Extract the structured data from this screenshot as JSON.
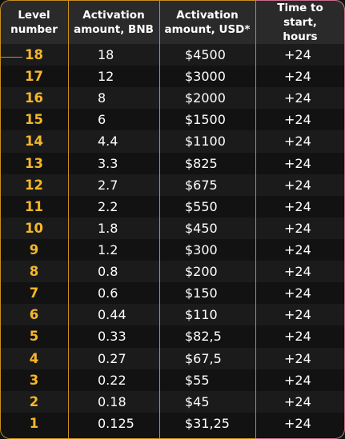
{
  "headers": {
    "level": "Level\nnumber",
    "bnb": "Activation\namount, BNB",
    "usd": "Activation\namount, USD*",
    "time": "Time to start,\nhours"
  },
  "rows": [
    {
      "level": "18",
      "bnb": "18",
      "usd": "$4500",
      "time": "+24"
    },
    {
      "level": "17",
      "bnb": "12",
      "usd": "$3000",
      "time": "+24"
    },
    {
      "level": "16",
      "bnb": "8",
      "usd": "$2000",
      "time": "+24"
    },
    {
      "level": "15",
      "bnb": "6",
      "usd": "$1500",
      "time": "+24"
    },
    {
      "level": "14",
      "bnb": "4.4",
      "usd": "$1100",
      "time": "+24"
    },
    {
      "level": "13",
      "bnb": "3.3",
      "usd": "$825",
      "time": "+24"
    },
    {
      "level": "12",
      "bnb": "2.7",
      "usd": "$675",
      "time": "+24"
    },
    {
      "level": "11",
      "bnb": "2.2",
      "usd": "$550",
      "time": "+24"
    },
    {
      "level": "10",
      "bnb": "1.8",
      "usd": "$450",
      "time": "+24"
    },
    {
      "level": "9",
      "bnb": "1.2",
      "usd": "$300",
      "time": "+24"
    },
    {
      "level": "8",
      "bnb": "0.8",
      "usd": "$200",
      "time": "+24"
    },
    {
      "level": "7",
      "bnb": "0.6",
      "usd": "$150",
      "time": "+24"
    },
    {
      "level": "6",
      "bnb": "0.44",
      "usd": "$110",
      "time": "+24"
    },
    {
      "level": "5",
      "bnb": "0.33",
      "usd": "$82,5",
      "time": "+24"
    },
    {
      "level": "4",
      "bnb": "0.27",
      "usd": "$67,5",
      "time": "+24"
    },
    {
      "level": "3",
      "bnb": "0.22",
      "usd": "$55",
      "time": "+24"
    },
    {
      "level": "2",
      "bnb": "0.18",
      "usd": "$45",
      "time": "+24"
    },
    {
      "level": "1",
      "bnb": "0.125",
      "usd": "$31,25",
      "time": "+24"
    }
  ],
  "colors": {
    "level_accent": "#f5b72a",
    "border_gold": "#c98f1c",
    "border_pink": "#c8708a",
    "header_bg": "#2a2a2a"
  }
}
